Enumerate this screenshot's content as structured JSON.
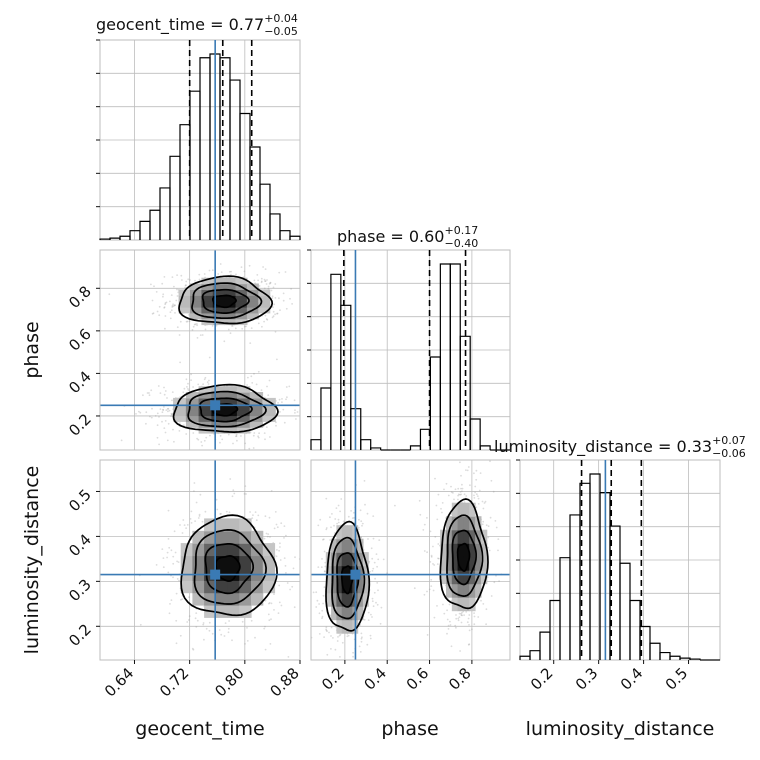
{
  "chart_data": {
    "type": "corner",
    "parameters": [
      "geocent_time",
      "phase",
      "luminosity_distance"
    ],
    "axis_labels": {
      "x": [
        "geocent_time",
        "phase",
        "luminosity_distance"
      ],
      "y_row2": "phase",
      "y_row3": "luminosity_distance"
    },
    "titles": [
      {
        "param": "geocent_time",
        "prefix": "geocent_time = ",
        "median": "0.77",
        "plus": "+0.04",
        "minus": "−0.05"
      },
      {
        "param": "phase",
        "prefix": "phase = ",
        "median": "0.60",
        "plus": "+0.17",
        "minus": "−0.40"
      },
      {
        "param": "luminosity_distance",
        "prefix": "luminosity_distance = ",
        "median": "0.33",
        "plus": "+0.07",
        "minus": "−0.06"
      }
    ],
    "ranges": {
      "geocent_time": [
        0.59,
        0.88
      ],
      "phase": [
        0.04,
        0.98
      ],
      "luminosity_distance": [
        0.125,
        0.57
      ]
    },
    "ticks": {
      "geocent_time": [
        0.64,
        0.72,
        0.8,
        0.88
      ],
      "geocent_time_labels": [
        "0.64",
        "0.72",
        "0.80",
        "0.88"
      ],
      "phase": [
        0.2,
        0.4,
        0.6,
        0.8
      ],
      "phase_labels": [
        "0.2",
        "0.4",
        "0.6",
        "0.8"
      ],
      "luminosity_distance": [
        0.2,
        0.3,
        0.4,
        0.5
      ],
      "luminosity_distance_labels": [
        "0.2",
        "0.3",
        "0.4",
        "0.5"
      ]
    },
    "truths": {
      "geocent_time": 0.757,
      "phase": 0.25,
      "luminosity_distance": 0.315
    },
    "quantiles": {
      "geocent_time": [
        0.72,
        0.768,
        0.81
      ],
      "phase": [
        0.195,
        0.6,
        0.77
      ],
      "luminosity_distance": [
        0.262,
        0.328,
        0.395
      ]
    },
    "histograms": {
      "geocent_time": {
        "edges": [
          0.59,
          0.6045,
          0.619,
          0.6335,
          0.648,
          0.6625,
          0.677,
          0.6915,
          0.706,
          0.7205,
          0.735,
          0.7495,
          0.764,
          0.7785,
          0.793,
          0.8075,
          0.822,
          0.8365,
          0.851,
          0.8655,
          0.88
        ],
        "counts": [
          0.005,
          0.01,
          0.02,
          0.05,
          0.1,
          0.16,
          0.28,
          0.45,
          0.62,
          0.8,
          0.98,
          1.0,
          0.98,
          0.86,
          0.68,
          0.5,
          0.3,
          0.14,
          0.05,
          0.02
        ]
      },
      "phase": {
        "edges": [
          0.04,
          0.087,
          0.134,
          0.181,
          0.228,
          0.275,
          0.322,
          0.369,
          0.416,
          0.463,
          0.51,
          0.557,
          0.604,
          0.651,
          0.698,
          0.745,
          0.792,
          0.839,
          0.886,
          0.933,
          0.98
        ],
        "counts": [
          0.05,
          0.3,
          0.85,
          0.7,
          0.2,
          0.05,
          0.01,
          0.0,
          0.0,
          0.0,
          0.02,
          0.1,
          0.45,
          0.9,
          0.9,
          0.55,
          0.15,
          0.02,
          0.0,
          0.0
        ]
      },
      "luminosity_distance": {
        "edges": [
          0.125,
          0.14725,
          0.1695,
          0.19175,
          0.214,
          0.23625,
          0.2585,
          0.28075,
          0.303,
          0.32525,
          0.3475,
          0.36975,
          0.392,
          0.41425,
          0.4365,
          0.45875,
          0.481,
          0.50325,
          0.5255,
          0.54775,
          0.57
        ],
        "counts": [
          0.02,
          0.05,
          0.15,
          0.32,
          0.55,
          0.78,
          0.95,
          1.0,
          0.9,
          0.72,
          0.52,
          0.32,
          0.18,
          0.09,
          0.04,
          0.02,
          0.01,
          0.005,
          0.0,
          0.0
        ]
      }
    },
    "joint_2d": [
      {
        "row": "phase",
        "col": "geocent_time",
        "modes": [
          {
            "cx": 0.77,
            "cy": 0.74,
            "sx": 0.033,
            "sy": 0.055
          },
          {
            "cx": 0.77,
            "cy": 0.23,
            "sx": 0.037,
            "sy": 0.055
          }
        ]
      },
      {
        "row": "luminosity_distance",
        "col": "geocent_time",
        "modes": [
          {
            "cx": 0.775,
            "cy": 0.33,
            "sx": 0.034,
            "sy": 0.055
          }
        ]
      },
      {
        "row": "luminosity_distance",
        "col": "phase",
        "modes": [
          {
            "cx": 0.21,
            "cy": 0.305,
            "sx": 0.05,
            "sy": 0.06
          },
          {
            "cx": 0.76,
            "cy": 0.355,
            "sx": 0.055,
            "sy": 0.06
          }
        ]
      }
    ],
    "contour_levels_sigma": [
      0.5,
      1.0,
      1.5,
      2.0
    ],
    "colors": {
      "truth": "#3a7ab4",
      "grid": "#bdbdbd",
      "line": "#000000"
    }
  }
}
